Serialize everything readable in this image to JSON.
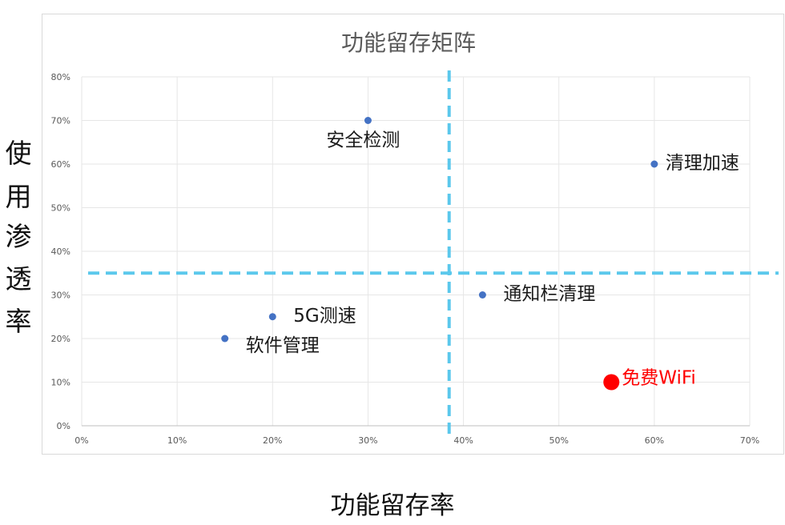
{
  "chart_data": {
    "type": "scatter",
    "title": "功能留存矩阵",
    "xlabel": "功能留存率",
    "ylabel": "使用渗透率",
    "xlim": [
      0,
      0.7
    ],
    "ylim": [
      0,
      0.8
    ],
    "xticks": [
      "0%",
      "10%",
      "20%",
      "30%",
      "40%",
      "50%",
      "60%",
      "70%"
    ],
    "yticks": [
      "0%",
      "10%",
      "20%",
      "30%",
      "40%",
      "50%",
      "60%",
      "70%",
      "80%"
    ],
    "grid": true,
    "series": [
      {
        "points": [
          {
            "label": "安全检测",
            "x": 0.3,
            "y": 0.7
          },
          {
            "label": "清理加速",
            "x": 0.6,
            "y": 0.6
          },
          {
            "label": "通知栏清理",
            "x": 0.42,
            "y": 0.3
          },
          {
            "label": "5G测速",
            "x": 0.2,
            "y": 0.25
          },
          {
            "label": "软件管理",
            "x": 0.15,
            "y": 0.2
          },
          {
            "label": "免费WiFi",
            "x": 0.555,
            "y": 0.1,
            "highlight": true
          }
        ]
      }
    ],
    "reference_lines": {
      "x": 0.385,
      "y": 0.35,
      "style": "dashed"
    },
    "colors": {
      "point": "#4472c4",
      "highlight": "#ff0000",
      "reference": "#5bc8ec",
      "grid": "#e6e6e6"
    }
  }
}
